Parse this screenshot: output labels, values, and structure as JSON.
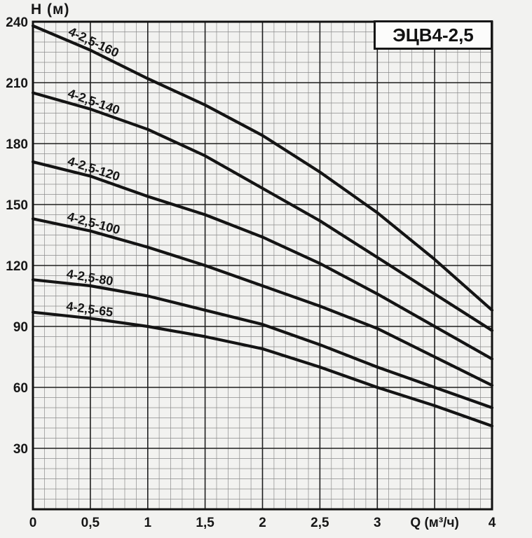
{
  "page": {
    "background": "#f2f2f0"
  },
  "header": {
    "title_box": "ЭЦВ4-2,5"
  },
  "chart_data": {
    "type": "line",
    "title": "ЭЦВ4-2,5",
    "xlabel": "Q (м³/ч)",
    "ylabel": "H (м)",
    "xlim": [
      0,
      4
    ],
    "ylim": [
      0,
      240
    ],
    "x_major_step": 0.5,
    "x_minor_step": 0.1,
    "y_major_step": 30,
    "y_minor_step": 5,
    "grid": true,
    "legend_position": "labels-on-curves",
    "xlabel_at_x": 3.5,
    "x_ticks": [
      {
        "value": 0,
        "label": "0"
      },
      {
        "value": 0.5,
        "label": "0,5"
      },
      {
        "value": 1,
        "label": "1"
      },
      {
        "value": 1.5,
        "label": "1,5"
      },
      {
        "value": 2,
        "label": "2"
      },
      {
        "value": 2.5,
        "label": "2,5"
      },
      {
        "value": 3,
        "label": "3"
      },
      {
        "value": 4,
        "label": "4"
      }
    ],
    "y_ticks": [
      {
        "value": 30,
        "label": "30"
      },
      {
        "value": 60,
        "label": "60"
      },
      {
        "value": 90,
        "label": "90"
      },
      {
        "value": 120,
        "label": "120"
      },
      {
        "value": 150,
        "label": "150"
      },
      {
        "value": 180,
        "label": "180"
      },
      {
        "value": 210,
        "label": "210"
      },
      {
        "value": 240,
        "label": "240"
      }
    ],
    "x": [
      0,
      0.5,
      1,
      1.5,
      2,
      2.5,
      3,
      3.5,
      4
    ],
    "series": [
      {
        "name": "4-2,5-160",
        "values": [
          238,
          226,
          212,
          199,
          184,
          166,
          146,
          123,
          98
        ]
      },
      {
        "name": "4-2,5-140",
        "values": [
          205,
          197,
          187,
          174,
          158,
          142,
          124,
          106,
          88
        ]
      },
      {
        "name": "4-2,5-120",
        "values": [
          171,
          164,
          154,
          145,
          134,
          121,
          106,
          90,
          74
        ]
      },
      {
        "name": "4-2,5-100",
        "values": [
          143,
          137,
          129,
          120,
          110,
          100,
          89,
          75,
          61
        ]
      },
      {
        "name": "4-2,5-80",
        "values": [
          113,
          110,
          105,
          98,
          91,
          81,
          70,
          60,
          50
        ]
      },
      {
        "name": "4-2,5-65",
        "values": [
          97,
          94,
          90,
          85,
          79,
          70,
          60,
          51,
          41
        ]
      }
    ],
    "colors": {
      "curve": "#141414",
      "grid_minor": "#8c8c8c",
      "grid_major": "#1e1e1e",
      "border": "#111111"
    }
  }
}
